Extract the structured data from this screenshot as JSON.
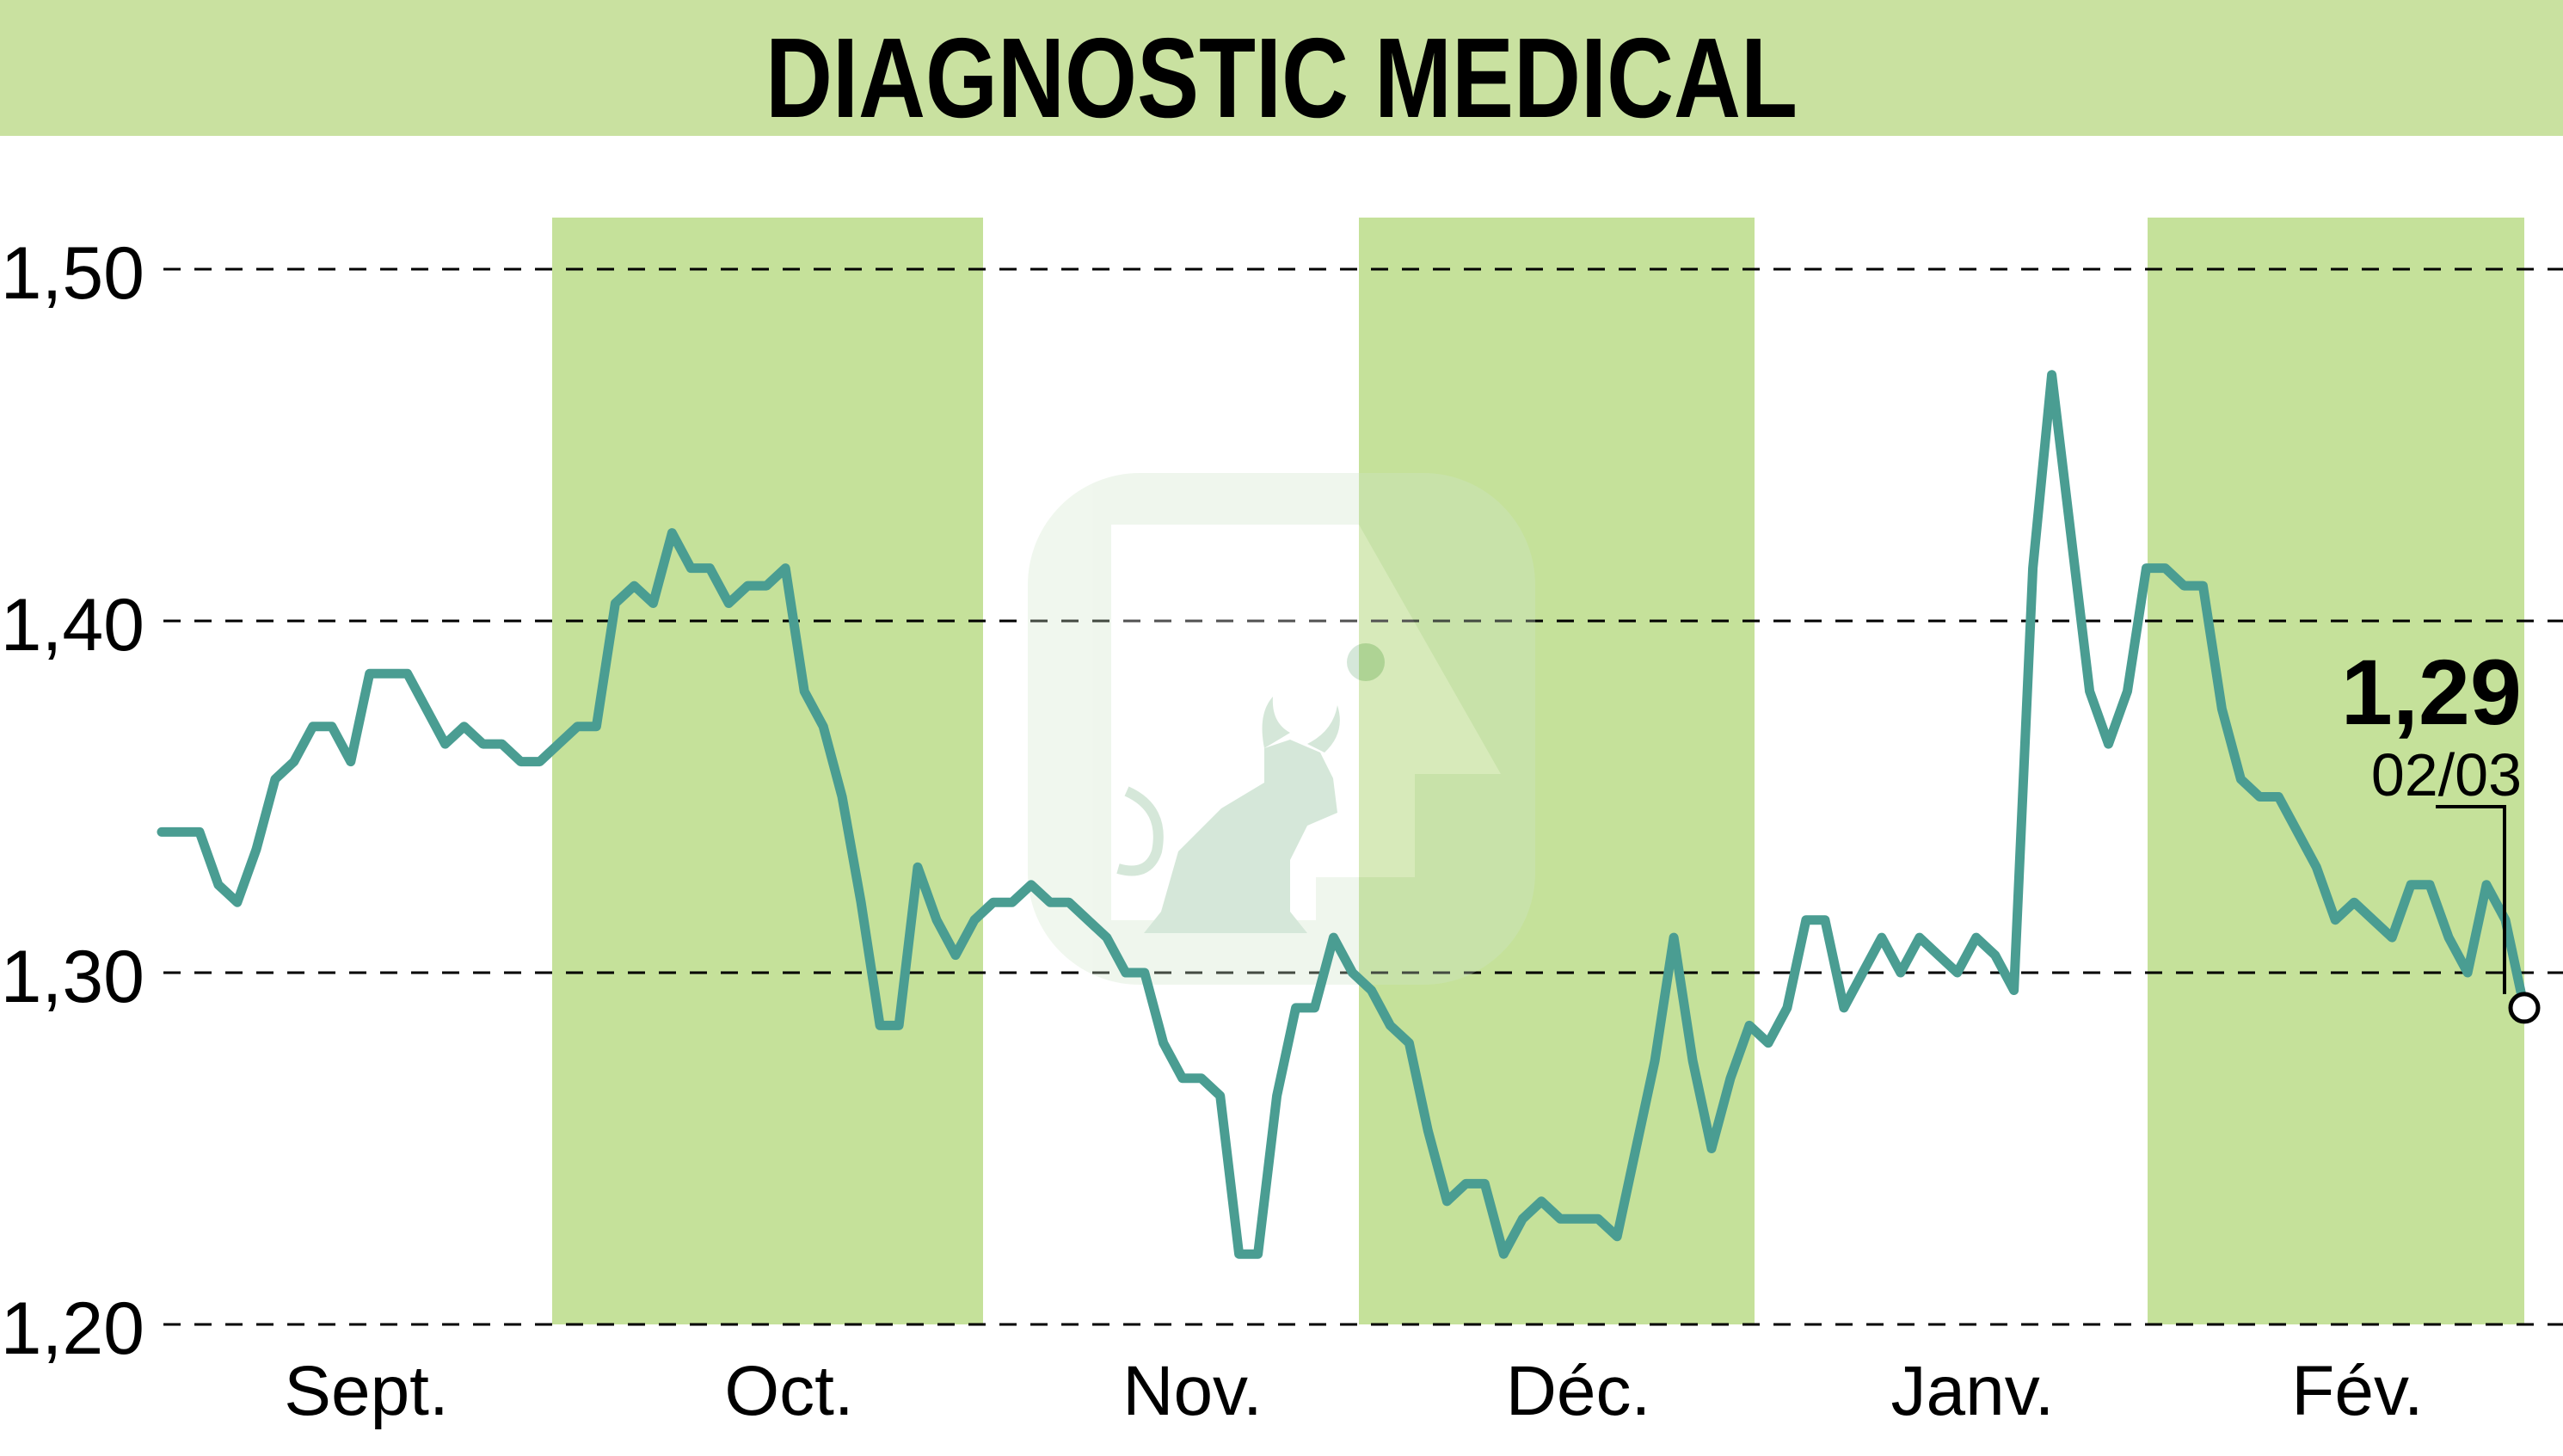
{
  "colors": {
    "title_band": "#c9e1a0",
    "month_band": "#c5e19a",
    "line": "#4a9d92",
    "watermark": "#7fb88a"
  },
  "watermark_icon": "bull-house-logo-icon",
  "chart_data": {
    "type": "line",
    "title": "DIAGNOSTIC MEDICAL",
    "xlabel": "",
    "ylabel": "",
    "ylim": [
      1.2,
      1.5
    ],
    "yticks": [
      1.2,
      1.3,
      1.4,
      1.5
    ],
    "ytick_labels": [
      "1,20",
      "1,30",
      "1,40",
      "1,50"
    ],
    "grid": "horizontal dashed",
    "months": [
      "Sept.",
      "Oct.",
      "Nov.",
      "Déc.",
      "Janv.",
      "Fév."
    ],
    "shaded_months": [
      "Oct.",
      "Déc.",
      "Fév."
    ],
    "last_value_label": "1,29",
    "last_date_label": "02/03",
    "series": [
      {
        "values": [
          1.34,
          1.34,
          1.34,
          1.325,
          1.32,
          1.335,
          1.355,
          1.36,
          1.37,
          1.37,
          1.36,
          1.385,
          1.385,
          1.385,
          1.375,
          1.365,
          1.37,
          1.365,
          1.365,
          1.36,
          1.36,
          1.365,
          1.37,
          1.37,
          1.405,
          1.41,
          1.405,
          1.425,
          1.415,
          1.415,
          1.405,
          1.41,
          1.41,
          1.415,
          1.38,
          1.37,
          1.35,
          1.32,
          1.285,
          1.285,
          1.33,
          1.315,
          1.305,
          1.315,
          1.32,
          1.32,
          1.325,
          1.32,
          1.32,
          1.315,
          1.31,
          1.3,
          1.3,
          1.28,
          1.27,
          1.27,
          1.265,
          1.22,
          1.22,
          1.265,
          1.29,
          1.29,
          1.31,
          1.3,
          1.295,
          1.285,
          1.28,
          1.255,
          1.235,
          1.24,
          1.24,
          1.22,
          1.23,
          1.235,
          1.23,
          1.23,
          1.23,
          1.225,
          1.25,
          1.275,
          1.31,
          1.275,
          1.25,
          1.27,
          1.285,
          1.28,
          1.29,
          1.315,
          1.315,
          1.29,
          1.3,
          1.31,
          1.3,
          1.31,
          1.305,
          1.3,
          1.31,
          1.305,
          1.295,
          1.415,
          1.47,
          1.425,
          1.38,
          1.365,
          1.38,
          1.415,
          1.415,
          1.41,
          1.41,
          1.375,
          1.355,
          1.35,
          1.35,
          1.34,
          1.33,
          1.315,
          1.32,
          1.315,
          1.31,
          1.325,
          1.325,
          1.31,
          1.3,
          1.325,
          1.315,
          1.29
        ]
      }
    ]
  }
}
